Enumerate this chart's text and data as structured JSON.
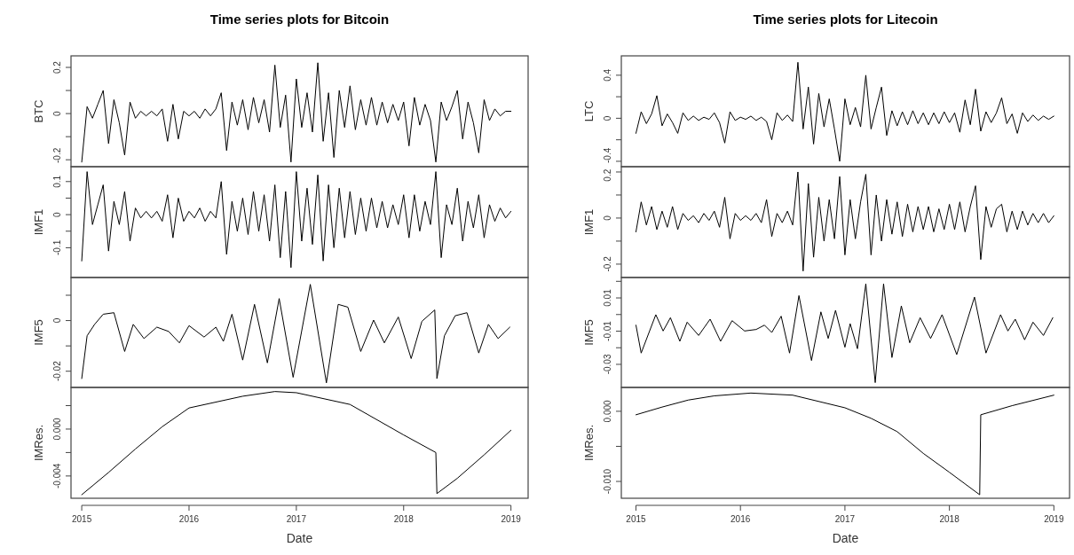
{
  "chart_data": [
    {
      "type": "line",
      "title": "Time series plots for Bitcoin",
      "ylabel": "BTC",
      "tick_labels": "y",
      "xlim": [
        2014.9,
        2019.16
      ],
      "ylim": [
        -0.23,
        0.25
      ],
      "yticks": [
        -0.2,
        {
          "value": -0.1,
          "label": null
        },
        0.0,
        {
          "value": 0.1,
          "label": null
        },
        0.2
      ],
      "line_style": "solid",
      "series": [
        {
          "color": "#000000",
          "x": [
            2015,
            2015.05,
            2015.1,
            2015.15,
            2015.2,
            2015.25,
            2015.3,
            2015.35,
            2015.4,
            2015.45,
            2015.5,
            2015.55,
            2015.6,
            2015.65,
            2015.7,
            2015.75,
            2015.8,
            2015.85,
            2015.9,
            2015.95,
            2016,
            2016.05,
            2016.1,
            2016.15,
            2016.2,
            2016.25,
            2016.3,
            2016.35,
            2016.4,
            2016.45,
            2016.5,
            2016.55,
            2016.6,
            2016.65,
            2016.7,
            2016.75,
            2016.8,
            2016.85,
            2016.9,
            2016.95,
            2017,
            2017.05,
            2017.1,
            2017.15,
            2017.2,
            2017.25,
            2017.3,
            2017.35,
            2017.4,
            2017.45,
            2017.5,
            2017.55,
            2017.6,
            2017.65,
            2017.7,
            2017.75,
            2017.8,
            2017.85,
            2017.9,
            2017.95,
            2018,
            2018.05,
            2018.1,
            2018.15,
            2018.2,
            2018.25,
            2018.3,
            2018.35,
            2018.4,
            2018.45,
            2018.5,
            2018.55,
            2018.6,
            2018.65,
            2018.7,
            2018.75,
            2018.8,
            2018.85,
            2018.9,
            2018.95,
            2019
          ],
          "values": [
            -0.21,
            0.03,
            -0.02,
            0.04,
            0.1,
            -0.13,
            0.06,
            -0.04,
            -0.18,
            0.05,
            -0.02,
            0.01,
            -0.01,
            0.01,
            -0.01,
            0.02,
            -0.12,
            0.04,
            -0.11,
            0.01,
            -0.01,
            0.01,
            -0.02,
            0.02,
            -0.01,
            0.02,
            0.09,
            -0.16,
            0.05,
            -0.05,
            0.06,
            -0.07,
            0.07,
            -0.04,
            0.06,
            -0.08,
            0.21,
            -0.06,
            0.08,
            -0.21,
            0.15,
            -0.06,
            0.09,
            -0.08,
            0.22,
            -0.12,
            0.09,
            -0.19,
            0.1,
            -0.06,
            0.12,
            -0.07,
            0.06,
            -0.05,
            0.07,
            -0.05,
            0.05,
            -0.04,
            0.04,
            -0.03,
            0.05,
            -0.14,
            0.07,
            -0.05,
            0.04,
            -0.03,
            -0.21,
            0.05,
            -0.03,
            0.03,
            0.1,
            -0.11,
            0.05,
            -0.04,
            -0.17,
            0.06,
            -0.03,
            0.02,
            -0.01,
            0.01,
            0.01
          ]
        }
      ]
    },
    {
      "type": "line",
      "ylabel": "IMF1",
      "tick_labels": "y",
      "xlim": [
        2014.9,
        2019.16
      ],
      "ylim": [
        -0.19,
        0.145
      ],
      "yticks": [
        -0.1,
        {
          "value": -0.05,
          "label": null
        },
        0.0,
        {
          "value": 0.05,
          "label": null
        },
        0.1
      ],
      "line_style": "solid",
      "series": [
        {
          "color": "#000000",
          "x": [
            2015,
            2015.05,
            2015.1,
            2015.15,
            2015.2,
            2015.25,
            2015.3,
            2015.35,
            2015.4,
            2015.45,
            2015.5,
            2015.55,
            2015.6,
            2015.65,
            2015.7,
            2015.75,
            2015.8,
            2015.85,
            2015.9,
            2015.95,
            2016,
            2016.05,
            2016.1,
            2016.15,
            2016.2,
            2016.25,
            2016.3,
            2016.35,
            2016.4,
            2016.45,
            2016.5,
            2016.55,
            2016.6,
            2016.65,
            2016.7,
            2016.75,
            2016.8,
            2016.85,
            2016.9,
            2016.95,
            2017,
            2017.05,
            2017.1,
            2017.15,
            2017.2,
            2017.25,
            2017.3,
            2017.35,
            2017.4,
            2017.45,
            2017.5,
            2017.55,
            2017.6,
            2017.65,
            2017.7,
            2017.75,
            2017.8,
            2017.85,
            2017.9,
            2017.95,
            2018,
            2018.05,
            2018.1,
            2018.15,
            2018.2,
            2018.25,
            2018.3,
            2018.35,
            2018.4,
            2018.45,
            2018.5,
            2018.55,
            2018.6,
            2018.65,
            2018.7,
            2018.75,
            2018.8,
            2018.85,
            2018.9,
            2018.95,
            2019
          ],
          "values": [
            -0.14,
            0.13,
            -0.03,
            0.03,
            0.09,
            -0.11,
            0.04,
            -0.03,
            0.07,
            -0.08,
            0.02,
            -0.01,
            0.01,
            -0.01,
            0.01,
            -0.02,
            0.06,
            -0.07,
            0.05,
            -0.02,
            0.01,
            -0.01,
            0.02,
            -0.02,
            0.01,
            -0.01,
            0.1,
            -0.12,
            0.04,
            -0.05,
            0.05,
            -0.06,
            0.07,
            -0.05,
            0.06,
            -0.08,
            0.09,
            -0.13,
            0.07,
            -0.16,
            0.13,
            -0.08,
            0.08,
            -0.09,
            0.12,
            -0.14,
            0.09,
            -0.1,
            0.08,
            -0.07,
            0.07,
            -0.06,
            0.05,
            -0.05,
            0.05,
            -0.04,
            0.04,
            -0.04,
            0.03,
            -0.03,
            0.06,
            -0.07,
            0.06,
            -0.05,
            0.04,
            -0.03,
            0.13,
            -0.13,
            0.03,
            -0.03,
            0.08,
            -0.08,
            0.04,
            -0.04,
            0.06,
            -0.07,
            0.03,
            -0.02,
            0.02,
            -0.01,
            0.01
          ]
        }
      ]
    },
    {
      "type": "line",
      "ylabel": "IMF5",
      "tick_labels": "y",
      "xlim": [
        2014.9,
        2019.16
      ],
      "ylim": [
        -0.0264,
        0.017
      ],
      "yticks": [
        -0.02,
        {
          "value": -0.01,
          "label": null
        },
        0.0,
        {
          "value": 0.01,
          "label": null
        }
      ],
      "line_style": "solid",
      "series": [
        {
          "color": "#000000",
          "x": [
            2015,
            2015.05,
            2015.12,
            2015.2,
            2015.3,
            2015.4,
            2015.48,
            2015.58,
            2015.7,
            2015.81,
            2015.91,
            2016,
            2016.14,
            2016.25,
            2016.32,
            2016.4,
            2016.5,
            2016.61,
            2016.73,
            2016.84,
            2016.97,
            2017.13,
            2017.28,
            2017.39,
            2017.48,
            2017.6,
            2017.72,
            2017.82,
            2017.95,
            2018.07,
            2018.17,
            2018.29,
            2018.31,
            2018.38,
            2018.48,
            2018.59,
            2018.7,
            2018.79,
            2018.88,
            2018.99
          ],
          "values": [
            -0.0229,
            -0.006,
            -0.0015,
            0.0025,
            0.0031,
            -0.0122,
            -0.0015,
            -0.0071,
            -0.0026,
            -0.0043,
            -0.0088,
            -0.002,
            -0.0065,
            -0.0026,
            -0.0082,
            0.0025,
            -0.0156,
            0.0064,
            -0.0167,
            0.0087,
            -0.0224,
            0.0143,
            -0.0246,
            0.0064,
            0.0053,
            -0.0122,
            0.0002,
            -0.0088,
            0.0014,
            -0.015,
            -0.0003,
            0.0042,
            -0.0229,
            -0.006,
            0.0019,
            0.0031,
            -0.0128,
            -0.0015,
            -0.0071,
            -0.0026
          ]
        }
      ]
    },
    {
      "type": "line",
      "xlabel": "Date",
      "ylabel": "IMRes.",
      "xlim": [
        2014.9,
        2019.16
      ],
      "xticks": [
        2015,
        2016,
        2017,
        2018,
        2019
      ],
      "ylim": [
        -0.0059,
        0.00355
      ],
      "yticks": [
        -0.004,
        {
          "value": -0.002,
          "label": null
        },
        {
          "value": 0,
          "label": "0.000"
        },
        {
          "value": 0.002,
          "label": null
        }
      ],
      "line_style": "solid",
      "series": [
        {
          "color": "#000000",
          "x": [
            2015,
            2015.25,
            2015.5,
            2015.75,
            2016,
            2016.5,
            2016.8,
            2017,
            2017.5,
            2018,
            2018.3,
            2018.31,
            2018.5,
            2018.75,
            2019
          ],
          "values": [
            -0.0056,
            -0.0037,
            -0.0017,
            0.0002,
            0.0018,
            0.0028,
            0.0032,
            0.0031,
            0.0021,
            -0.0005,
            -0.002,
            -0.0055,
            -0.0042,
            -0.0022,
            -0.0001
          ]
        }
      ]
    },
    {
      "type": "line",
      "title": "Time series plots for Litecoin",
      "ylabel": "LTC",
      "tick_labels": "y",
      "xlim": [
        2014.86,
        2019.15
      ],
      "ylim": [
        -0.45,
        0.58
      ],
      "yticks": [
        -0.4,
        {
          "value": -0.2,
          "label": null
        },
        0.0,
        {
          "value": 0.2,
          "label": null
        },
        0.4
      ],
      "line_style": "solid",
      "series": [
        {
          "color": "#000000",
          "x": [
            2015,
            2015.05,
            2015.1,
            2015.15,
            2015.2,
            2015.25,
            2015.3,
            2015.35,
            2015.4,
            2015.45,
            2015.5,
            2015.55,
            2015.6,
            2015.65,
            2015.7,
            2015.75,
            2015.8,
            2015.85,
            2015.9,
            2015.95,
            2016,
            2016.05,
            2016.1,
            2016.15,
            2016.2,
            2016.25,
            2016.3,
            2016.35,
            2016.4,
            2016.45,
            2016.5,
            2016.55,
            2016.6,
            2016.65,
            2016.7,
            2016.75,
            2016.8,
            2016.85,
            2016.9,
            2016.95,
            2017,
            2017.05,
            2017.1,
            2017.15,
            2017.2,
            2017.25,
            2017.3,
            2017.35,
            2017.4,
            2017.45,
            2017.5,
            2017.55,
            2017.6,
            2017.65,
            2017.7,
            2017.75,
            2017.8,
            2017.85,
            2017.9,
            2017.95,
            2018,
            2018.05,
            2018.1,
            2018.15,
            2018.2,
            2018.25,
            2018.3,
            2018.35,
            2018.4,
            2018.45,
            2018.5,
            2018.55,
            2018.6,
            2018.65,
            2018.7,
            2018.75,
            2018.8,
            2018.85,
            2018.9,
            2018.95,
            2019
          ],
          "values": [
            -0.14,
            0.06,
            -0.05,
            0.04,
            0.21,
            -0.07,
            0.04,
            -0.04,
            -0.14,
            0.05,
            -0.02,
            0.02,
            -0.02,
            0.01,
            -0.01,
            0.05,
            -0.04,
            -0.23,
            0.06,
            -0.02,
            0.01,
            -0.01,
            0.02,
            -0.02,
            0.01,
            -0.03,
            -0.2,
            0.05,
            -0.02,
            0.03,
            -0.03,
            0.52,
            -0.1,
            0.29,
            -0.24,
            0.23,
            -0.08,
            0.18,
            -0.1,
            -0.4,
            0.18,
            -0.06,
            0.1,
            -0.08,
            0.4,
            -0.1,
            0.1,
            0.29,
            -0.16,
            0.07,
            -0.07,
            0.06,
            -0.06,
            0.07,
            -0.05,
            0.05,
            -0.06,
            0.05,
            -0.05,
            0.06,
            -0.04,
            0.05,
            -0.13,
            0.17,
            -0.06,
            0.27,
            -0.12,
            0.06,
            -0.04,
            0.05,
            0.19,
            -0.05,
            0.04,
            -0.14,
            0.05,
            -0.03,
            0.03,
            -0.02,
            0.02,
            -0.01,
            0.02
          ]
        }
      ]
    },
    {
      "type": "line",
      "ylabel": "IMF1",
      "tick_labels": "y",
      "xlim": [
        2014.86,
        2019.15
      ],
      "ylim": [
        -0.258,
        0.223
      ],
      "yticks": [
        -0.2,
        {
          "value": -0.1,
          "label": null
        },
        0.0,
        {
          "value": 0.1,
          "label": null
        },
        0.2
      ],
      "line_style": "solid",
      "series": [
        {
          "color": "#000000",
          "x": [
            2015,
            2015.05,
            2015.1,
            2015.15,
            2015.2,
            2015.25,
            2015.3,
            2015.35,
            2015.4,
            2015.45,
            2015.5,
            2015.55,
            2015.6,
            2015.65,
            2015.7,
            2015.75,
            2015.8,
            2015.85,
            2015.9,
            2015.95,
            2016,
            2016.05,
            2016.1,
            2016.15,
            2016.2,
            2016.25,
            2016.3,
            2016.35,
            2016.4,
            2016.45,
            2016.5,
            2016.55,
            2016.6,
            2016.65,
            2016.7,
            2016.75,
            2016.8,
            2016.85,
            2016.9,
            2016.95,
            2017,
            2017.05,
            2017.1,
            2017.15,
            2017.2,
            2017.25,
            2017.3,
            2017.35,
            2017.4,
            2017.45,
            2017.5,
            2017.55,
            2017.6,
            2017.65,
            2017.7,
            2017.75,
            2017.8,
            2017.85,
            2017.9,
            2017.95,
            2018,
            2018.05,
            2018.1,
            2018.15,
            2018.2,
            2018.25,
            2018.3,
            2018.35,
            2018.4,
            2018.45,
            2018.5,
            2018.55,
            2018.6,
            2018.65,
            2018.7,
            2018.75,
            2018.8,
            2018.85,
            2018.9,
            2018.95,
            2019
          ],
          "values": [
            -0.06,
            0.07,
            -0.03,
            0.05,
            -0.05,
            0.03,
            -0.04,
            0.05,
            -0.05,
            0.02,
            -0.01,
            0.01,
            -0.02,
            0.02,
            -0.01,
            0.03,
            -0.04,
            0.09,
            -0.09,
            0.02,
            -0.01,
            0.01,
            -0.01,
            0.02,
            -0.02,
            0.08,
            -0.08,
            0.02,
            -0.02,
            0.03,
            -0.03,
            0.2,
            -0.23,
            0.15,
            -0.17,
            0.09,
            -0.1,
            0.08,
            -0.09,
            0.18,
            -0.16,
            0.08,
            -0.09,
            0.07,
            0.19,
            -0.16,
            0.1,
            -0.1,
            0.08,
            -0.07,
            0.07,
            -0.08,
            0.06,
            -0.06,
            0.05,
            -0.05,
            0.05,
            -0.06,
            0.04,
            -0.05,
            0.06,
            -0.05,
            0.07,
            -0.06,
            0.05,
            0.14,
            -0.18,
            0.05,
            -0.04,
            0.04,
            0.06,
            -0.06,
            0.03,
            -0.05,
            0.03,
            -0.03,
            0.02,
            -0.02,
            0.02,
            -0.02,
            0.01
          ]
        }
      ]
    },
    {
      "type": "line",
      "ylabel": "IMF5",
      "tick_labels": "y",
      "xlim": [
        2014.86,
        2019.15
      ],
      "ylim": [
        -0.0439,
        0.0223
      ],
      "yticks": [
        -0.03,
        {
          "value": -0.02,
          "label": null
        },
        -0.01,
        {
          "value": 0.0,
          "label": null
        },
        0.01,
        {
          "value": 0.02,
          "label": null
        }
      ],
      "line_style": "solid",
      "series": [
        {
          "color": "#000000",
          "x": [
            2015,
            2015.05,
            2015.19,
            2015.26,
            2015.33,
            2015.42,
            2015.49,
            2015.6,
            2015.71,
            2015.81,
            2015.92,
            2016.04,
            2016.15,
            2016.23,
            2016.3,
            2016.39,
            2016.47,
            2016.56,
            2016.68,
            2016.77,
            2016.84,
            2016.91,
            2017,
            2017.05,
            2017.12,
            2017.2,
            2017.29,
            2017.37,
            2017.45,
            2017.54,
            2017.62,
            2017.72,
            2017.82,
            2017.93,
            2018.07,
            2018.24,
            2018.35,
            2018.49,
            2018.56,
            2018.63,
            2018.72,
            2018.8,
            2018.9,
            2018.99
          ],
          "values": [
            -0.0064,
            -0.0232,
            -0.0001,
            -0.0099,
            -0.0019,
            -0.0161,
            -0.0046,
            -0.0126,
            -0.0028,
            -0.0161,
            -0.0037,
            -0.0099,
            -0.009,
            -0.0064,
            -0.0108,
            -0.001,
            -0.0232,
            0.0114,
            -0.0277,
            0.0016,
            -0.0144,
            0.0025,
            -0.0197,
            -0.0055,
            -0.0206,
            0.0185,
            -0.041,
            0.0185,
            -0.0259,
            0.0052,
            -0.017,
            -0.0019,
            -0.0144,
            -0.0001,
            -0.0241,
            0.0105,
            -0.0232,
            -0.0001,
            -0.0099,
            -0.0028,
            -0.0152,
            -0.0046,
            -0.0126,
            -0.0019
          ]
        }
      ]
    },
    {
      "type": "line",
      "xlabel": "Date",
      "ylabel": "IMRes.",
      "xlim": [
        2014.86,
        2019.15
      ],
      "xticks": [
        2015,
        2016,
        2017,
        2018,
        2019
      ],
      "ylim": [
        -0.0124,
        0.0034
      ],
      "yticks": [
        {
          "value": -0.01,
          "label": "-0.010"
        },
        {
          "value": -0.005,
          "label": null
        },
        {
          "value": 0,
          "label": "0.000"
        }
      ],
      "line_style": "solid",
      "series": [
        {
          "color": "#000000",
          "x": [
            2015,
            2015.25,
            2015.5,
            2015.75,
            2016.1,
            2016.5,
            2017,
            2017.25,
            2017.5,
            2017.75,
            2018,
            2018.29,
            2018.3,
            2018.6,
            2019
          ],
          "values": [
            -0.0005,
            0.0006,
            0.0016,
            0.0022,
            0.0026,
            0.0023,
            0.0005,
            -0.001,
            -0.0029,
            -0.006,
            -0.0087,
            -0.0119,
            -0.0005,
            0.0008,
            0.0023
          ]
        }
      ]
    }
  ]
}
